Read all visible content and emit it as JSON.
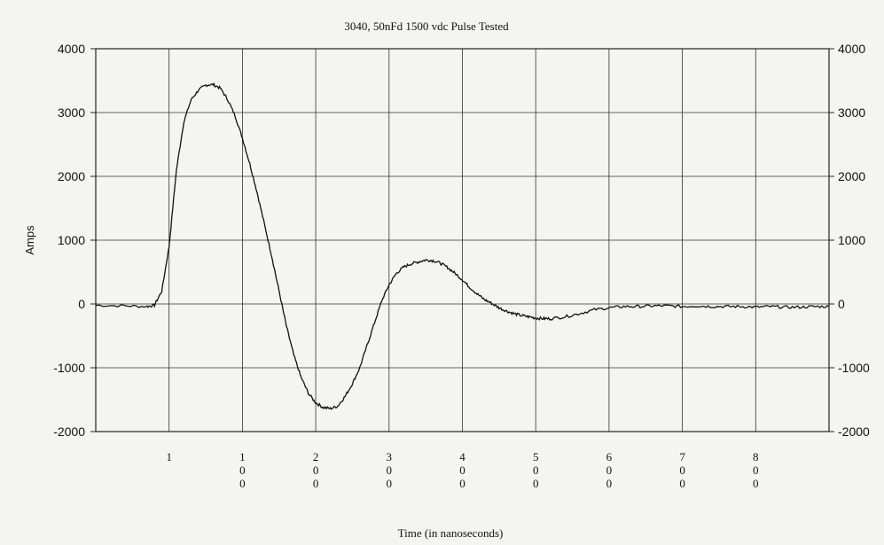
{
  "chart_data": {
    "type": "line",
    "title": "3040, 50nFd  1500 vdc Pulse Tested",
    "xlabel": "Time (in nanoseconds)",
    "ylabel": "Amps",
    "ylim": [
      -2000,
      4000
    ],
    "xlim": [
      0,
      1000
    ],
    "y_ticks": [
      "4000",
      "3000",
      "2000",
      "1000",
      "0",
      "-1000",
      "-2000"
    ],
    "y_ticks_right": [
      "4000",
      "3000",
      "2000",
      "1000",
      "0",
      "-1000",
      "-2000"
    ],
    "x_ticks": [
      {
        "label": "1",
        "x": 100
      },
      {
        "label": "100",
        "x": 200
      },
      {
        "label": "200",
        "x": 300
      },
      {
        "label": "300",
        "x": 400
      },
      {
        "label": "400",
        "x": 500
      },
      {
        "label": "500",
        "x": 600
      },
      {
        "label": "600",
        "x": 700
      },
      {
        "label": "700",
        "x": 800
      },
      {
        "label": "800",
        "x": 900
      }
    ],
    "grid": true,
    "series": [
      {
        "x": [
          0,
          40,
          70,
          80,
          90,
          100,
          110,
          120,
          130,
          140,
          150,
          160,
          170,
          180,
          190,
          200,
          210,
          220,
          230,
          240,
          250,
          260,
          270,
          280,
          290,
          300,
          310,
          320,
          330,
          340,
          350,
          360,
          370,
          380,
          390,
          400,
          410,
          420,
          430,
          440,
          450,
          460,
          470,
          480,
          490,
          500,
          510,
          520,
          530,
          540,
          550,
          560,
          570,
          580,
          590,
          600,
          610,
          620,
          640,
          660,
          680,
          700,
          720,
          740,
          760,
          780,
          800,
          820,
          840,
          860,
          880,
          900,
          920,
          940,
          960,
          980,
          1000
        ],
        "y": [
          -20,
          -30,
          -40,
          -20,
          200,
          900,
          2100,
          2850,
          3200,
          3350,
          3430,
          3440,
          3380,
          3200,
          2950,
          2600,
          2200,
          1750,
          1250,
          750,
          200,
          -350,
          -800,
          -1150,
          -1400,
          -1550,
          -1620,
          -1640,
          -1600,
          -1450,
          -1250,
          -1000,
          -650,
          -300,
          50,
          300,
          480,
          580,
          630,
          660,
          690,
          680,
          640,
          570,
          480,
          380,
          260,
          160,
          70,
          10,
          -60,
          -110,
          -150,
          -180,
          -200,
          -220,
          -230,
          -230,
          -200,
          -150,
          -90,
          -60,
          -40,
          -40,
          -30,
          -30,
          -40,
          -30,
          -40,
          -40,
          -40,
          -50,
          -40,
          -50,
          -50,
          -40,
          -40
        ]
      }
    ]
  }
}
